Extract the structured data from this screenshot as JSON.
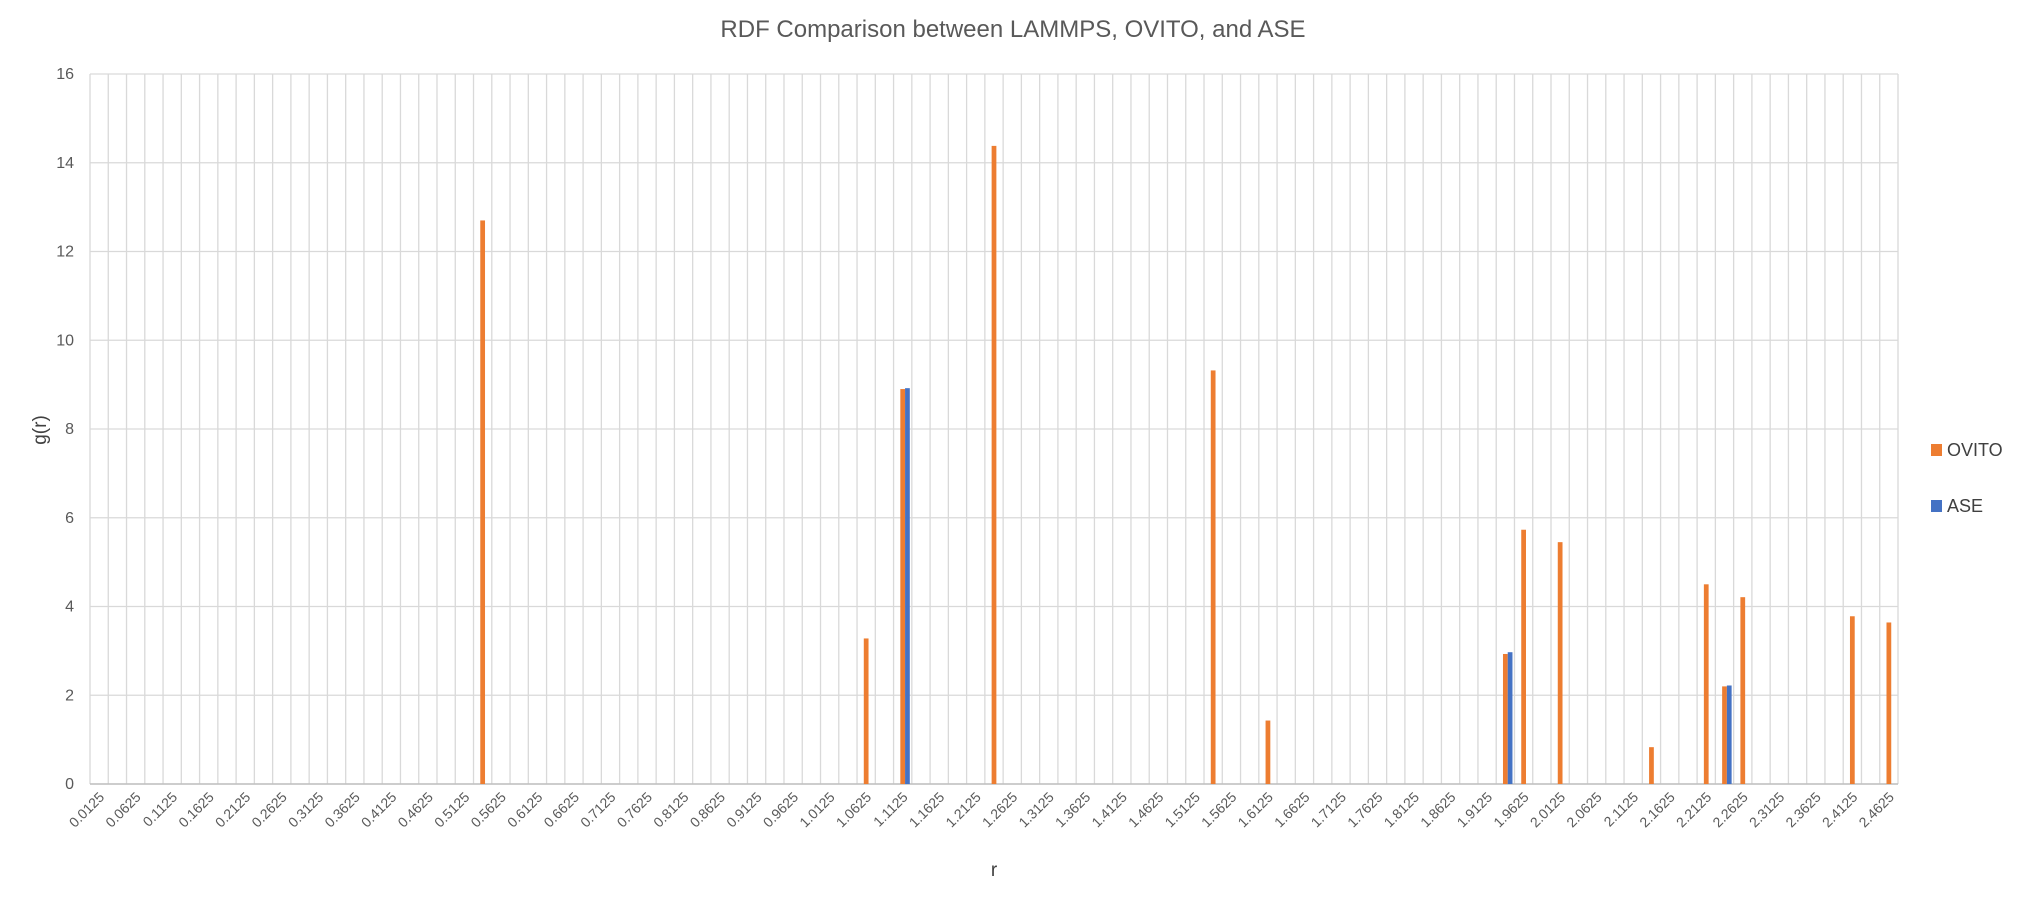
{
  "chart_data": {
    "type": "bar",
    "title": "RDF Comparison between LAMMPS, OVITO, and ASE",
    "xlabel": "r",
    "ylabel": "g(r)",
    "ylim": [
      0,
      16
    ],
    "yticks": [
      0,
      2,
      4,
      6,
      8,
      10,
      12,
      14,
      16
    ],
    "grid": true,
    "legend_position": "right",
    "x_start": 0.0125,
    "x_step": 0.025,
    "x_count": 99,
    "x_label_every": 2,
    "series": [
      {
        "name": "OVITO",
        "color": "#ED7D31",
        "points": [
          {
            "x": 0.5375,
            "y": 12.7
          },
          {
            "x": 1.0625,
            "y": 3.28
          },
          {
            "x": 1.1125,
            "y": 8.9
          },
          {
            "x": 1.2375,
            "y": 14.38
          },
          {
            "x": 1.5375,
            "y": 9.32
          },
          {
            "x": 1.6125,
            "y": 1.43
          },
          {
            "x": 1.9375,
            "y": 2.93
          },
          {
            "x": 1.9625,
            "y": 5.73
          },
          {
            "x": 2.0125,
            "y": 5.45
          },
          {
            "x": 2.1375,
            "y": 0.83
          },
          {
            "x": 2.2125,
            "y": 4.5
          },
          {
            "x": 2.2375,
            "y": 2.2
          },
          {
            "x": 2.2625,
            "y": 4.21
          },
          {
            "x": 2.4125,
            "y": 3.78
          },
          {
            "x": 2.4625,
            "y": 3.64
          }
        ]
      },
      {
        "name": "ASE",
        "color": "#4472C4",
        "points": [
          {
            "x": 1.1125,
            "y": 8.92
          },
          {
            "x": 1.9375,
            "y": 2.97
          },
          {
            "x": 2.2375,
            "y": 2.22
          }
        ]
      }
    ]
  }
}
